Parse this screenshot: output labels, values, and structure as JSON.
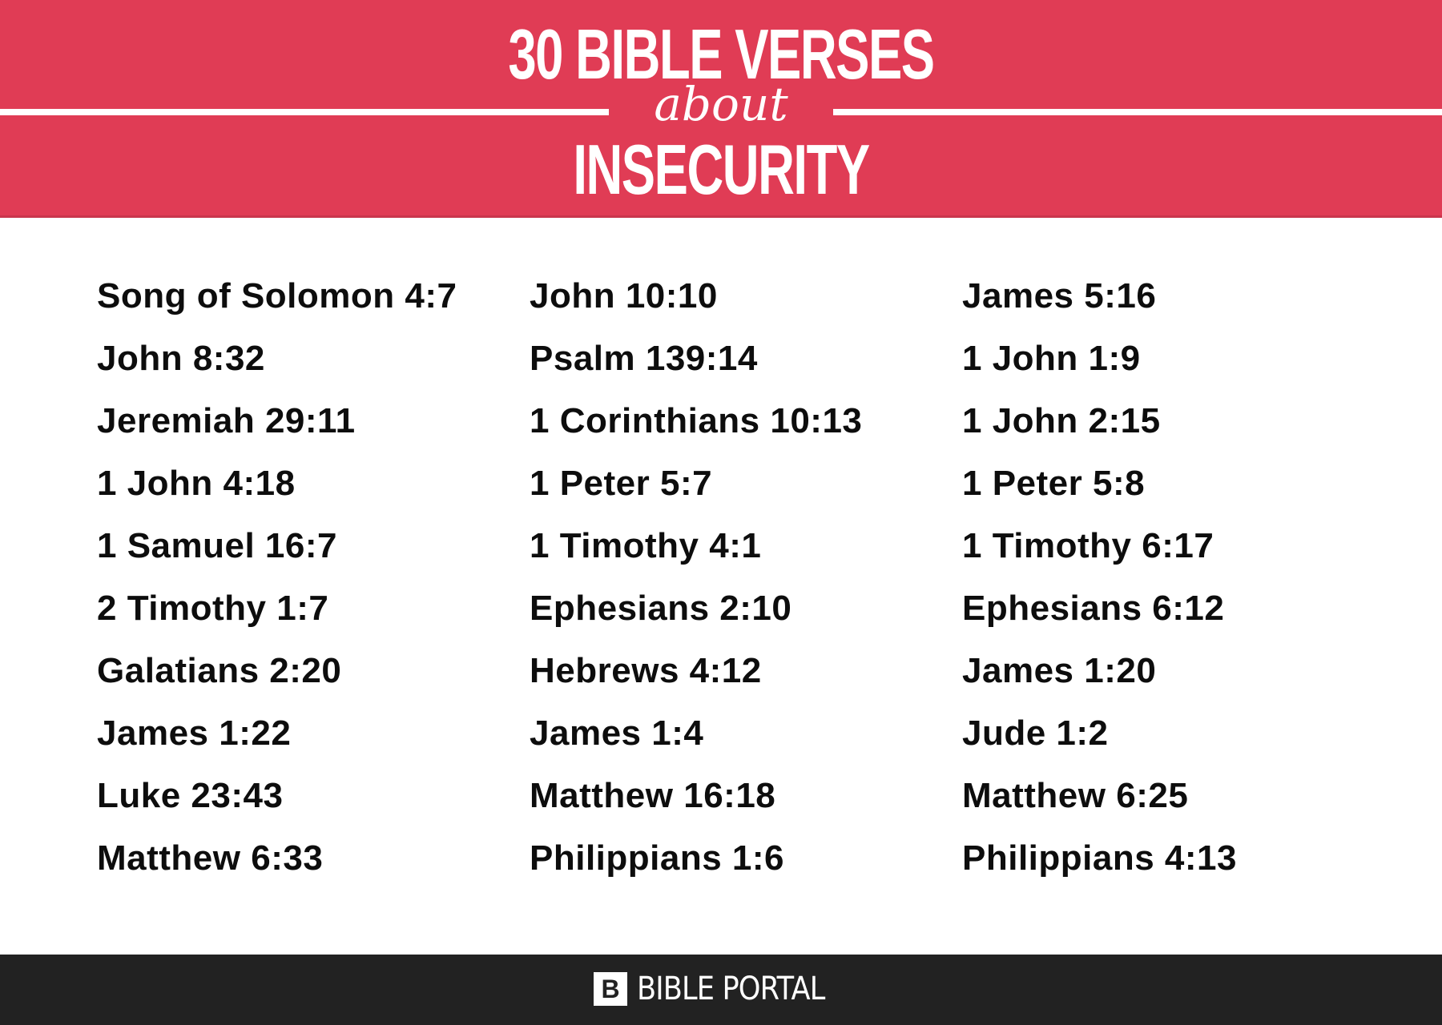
{
  "header": {
    "title_line1": "30 BIBLE VERSES",
    "subtitle": "about",
    "title_line2": "INSECURITY",
    "background_color": "#E03C55"
  },
  "verses": {
    "columns": [
      {
        "items": [
          "Song of Solomon 4:7",
          "John 8:32",
          "Jeremiah 29:11",
          "1 John 4:18",
          "1 Samuel 16:7",
          "2 Timothy 1:7",
          "Galatians 2:20",
          "James 1:22",
          "Luke 23:43",
          "Matthew 6:33"
        ]
      },
      {
        "items": [
          "John 10:10",
          "Psalm 139:14",
          "1 Corinthians 10:13",
          "1 Peter 5:7",
          "1 Timothy 4:1",
          "Ephesians 2:10",
          "Hebrews 4:12",
          "James 1:4",
          "Matthew 16:18",
          "Philippians 1:6"
        ]
      },
      {
        "items": [
          "James 5:16",
          "1 John 1:9",
          "1 John 2:15",
          "1 Peter 5:8",
          "1 Timothy 6:17",
          "Ephesians 6:12",
          "James 1:20",
          "Jude 1:2",
          "Matthew 6:25",
          "Philippians 4:13"
        ]
      }
    ]
  },
  "footer": {
    "logo_icon": "bible-portal-b-icon",
    "logo_mark": "B",
    "brand": "BIBLE PORTAL",
    "background_color": "#222222"
  }
}
